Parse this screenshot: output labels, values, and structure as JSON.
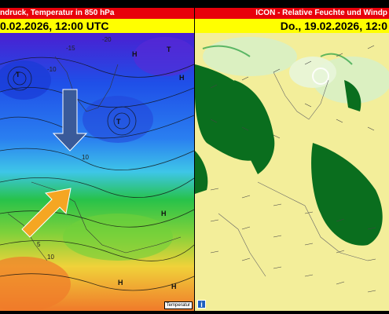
{
  "left_panel": {
    "title": "ndruck, Temperatur in 850 hPa",
    "date": "0.02.2026, 12:00 UTC",
    "legend_tag": "Temperatur",
    "high_label": "H",
    "low_label": "T",
    "isobar_labels": [
      "-10",
      "-15",
      "-20",
      "10",
      "5",
      "10"
    ],
    "arrows": [
      {
        "name": "cold-air-arrow",
        "direction": "down",
        "color": "#3a5a99"
      },
      {
        "name": "warm-air-arrow",
        "direction": "up-right",
        "color": "#f5a623"
      }
    ]
  },
  "right_panel": {
    "title": "ICON - Relative Feuchte und Windp",
    "date": "Do., 19.02.2026, 12:0",
    "info_icon": "info-icon"
  },
  "colors": {
    "title_bg": "#e8000b",
    "date_bg": "#ffff00",
    "humidity_green": "#0a6e1e",
    "background_yellow": "#f3ee9a"
  }
}
